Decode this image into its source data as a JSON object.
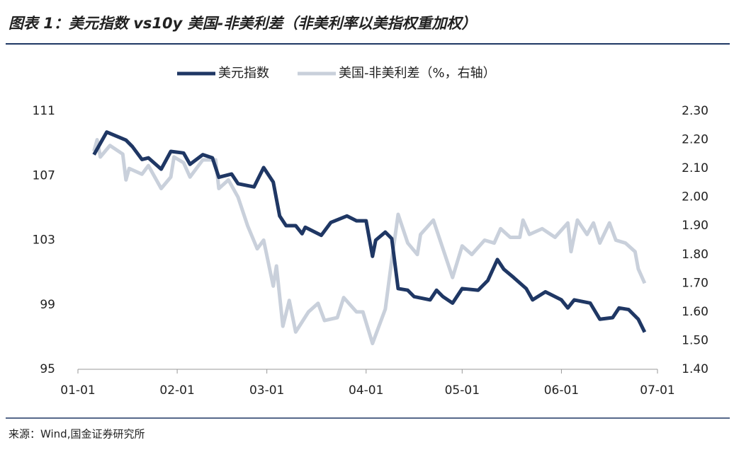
{
  "chart_data": {
    "type": "line",
    "title": "图表 1：美元指数 vs10y 美国-非美利差（非美利率以美指权重加权）",
    "source": "来源：Wind,国金证券研究所",
    "xticks": [
      "01-01",
      "02-01",
      "03-01",
      "04-01",
      "05-01",
      "06-01",
      "07-01"
    ],
    "ylim": [
      95,
      111
    ],
    "yticks": [
      95,
      99,
      103,
      107,
      111
    ],
    "y2lim": [
      1.4,
      2.3
    ],
    "y2ticks": [
      {
        "value": 1.4,
        "label": "1.40"
      },
      {
        "value": 1.5,
        "label": "1.50"
      },
      {
        "value": 1.6,
        "label": "1.60"
      },
      {
        "value": 1.7,
        "label": "1.70"
      },
      {
        "value": 1.8,
        "label": "1.80"
      },
      {
        "value": 1.9,
        "label": "1.90"
      },
      {
        "value": 2.0,
        "label": "2.00"
      },
      {
        "value": 2.1,
        "label": "2.10"
      },
      {
        "value": 2.2,
        "label": "2.20"
      },
      {
        "value": 2.3,
        "label": "2.30"
      }
    ],
    "legend": "top",
    "series": [
      {
        "name": "美元指数",
        "color": "#1f3764",
        "x": [
          "01-06",
          "01-10",
          "01-16",
          "01-18",
          "01-21",
          "01-23",
          "01-27",
          "01-30",
          "02-03",
          "02-05",
          "02-09",
          "02-12",
          "02-14",
          "02-18",
          "02-20",
          "02-25",
          "02-28",
          "03-03",
          "03-05",
          "03-07",
          "03-10",
          "03-12",
          "03-13",
          "03-18",
          "03-21",
          "03-26",
          "03-29",
          "04-01",
          "04-03",
          "04-04",
          "04-07",
          "04-09",
          "04-11",
          "04-14",
          "04-16",
          "04-21",
          "04-23",
          "04-25",
          "04-28",
          "05-01",
          "05-06",
          "05-09",
          "05-12",
          "05-14",
          "05-17",
          "05-21",
          "05-23",
          "05-27",
          "06-01",
          "06-03",
          "06-05",
          "06-10",
          "06-13",
          "06-17",
          "06-19",
          "06-22",
          "06-25",
          "06-27"
        ],
        "values": [
          108.3,
          109.7,
          109.2,
          108.8,
          108.0,
          108.1,
          107.4,
          108.5,
          108.4,
          107.7,
          108.3,
          108.1,
          106.9,
          107.1,
          106.5,
          106.3,
          107.5,
          106.6,
          104.5,
          103.9,
          103.9,
          103.4,
          103.8,
          103.3,
          104.1,
          104.5,
          104.2,
          104.2,
          102.0,
          103.0,
          103.5,
          103.1,
          100.0,
          99.9,
          99.5,
          99.3,
          99.9,
          99.5,
          99.1,
          100.0,
          99.9,
          100.5,
          101.8,
          101.2,
          100.7,
          100.0,
          99.3,
          99.8,
          99.3,
          98.8,
          99.3,
          99.1,
          98.1,
          98.2,
          98.8,
          98.7,
          98.1,
          97.3
        ]
      },
      {
        "name": "美国-非美利差（%，右轴）",
        "color": "#c9d0db",
        "axis": "y2",
        "x": [
          "01-06",
          "01-07",
          "01-08",
          "01-11",
          "01-15",
          "01-16",
          "01-17",
          "01-21",
          "01-23",
          "01-27",
          "01-30",
          "01-31",
          "02-03",
          "02-05",
          "02-09",
          "02-13",
          "02-14",
          "02-17",
          "02-20",
          "02-23",
          "02-26",
          "02-28",
          "03-03",
          "03-04",
          "03-06",
          "03-08",
          "03-10",
          "03-14",
          "03-17",
          "03-19",
          "03-23",
          "03-25",
          "03-29",
          "03-31",
          "04-03",
          "04-07",
          "04-09",
          "04-11",
          "04-14",
          "04-17",
          "04-18",
          "04-22",
          "04-25",
          "04-28",
          "05-01",
          "05-04",
          "05-08",
          "05-11",
          "05-13",
          "05-16",
          "05-19",
          "05-20",
          "05-22",
          "05-26",
          "05-30",
          "06-03",
          "06-04",
          "06-06",
          "06-09",
          "06-11",
          "06-13",
          "06-16",
          "06-18",
          "06-21",
          "06-24",
          "06-25",
          "06-27"
        ],
        "values": [
          2.16,
          2.2,
          2.14,
          2.18,
          2.15,
          2.06,
          2.1,
          2.08,
          2.11,
          2.03,
          2.07,
          2.14,
          2.12,
          2.07,
          2.13,
          2.13,
          2.03,
          2.06,
          2.0,
          1.9,
          1.82,
          1.85,
          1.69,
          1.76,
          1.55,
          1.64,
          1.53,
          1.6,
          1.63,
          1.57,
          1.58,
          1.65,
          1.6,
          1.6,
          1.49,
          1.61,
          1.78,
          1.94,
          1.84,
          1.8,
          1.87,
          1.92,
          1.82,
          1.72,
          1.83,
          1.8,
          1.85,
          1.84,
          1.89,
          1.86,
          1.86,
          1.92,
          1.87,
          1.89,
          1.86,
          1.91,
          1.81,
          1.92,
          1.87,
          1.91,
          1.84,
          1.91,
          1.85,
          1.84,
          1.81,
          1.75,
          1.7
        ]
      }
    ]
  }
}
